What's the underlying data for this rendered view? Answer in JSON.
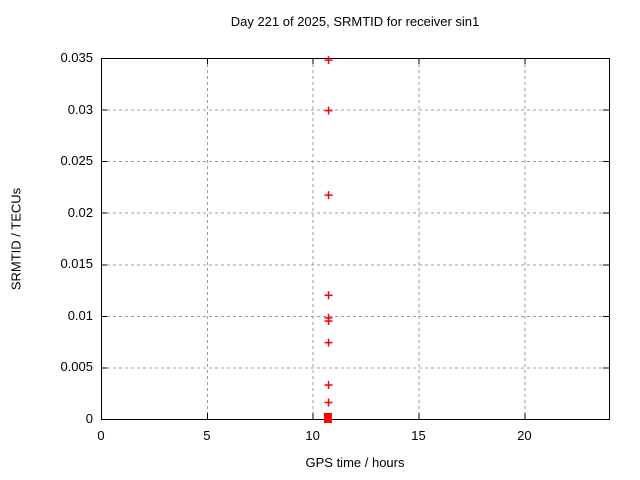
{
  "page": {
    "background": "#ffffff"
  },
  "chart_data": {
    "type": "scatter",
    "title": "Day 221 of 2025, SRMTID for receiver sin1",
    "xlabel": "GPS time / hours",
    "ylabel": "SRMTID / TECUs",
    "xlim": [
      0,
      24
    ],
    "ylim": [
      0,
      0.035
    ],
    "xticks": [
      0,
      5,
      10,
      15,
      20
    ],
    "xtick_labels": [
      "0",
      "5",
      "10",
      "15",
      "20"
    ],
    "yticks": [
      0,
      0.005,
      0.01,
      0.015,
      0.02,
      0.025,
      0.03,
      0.035
    ],
    "ytick_labels": [
      "0",
      "0.005",
      "0.01",
      "0.015",
      "0.02",
      "0.025",
      "0.03",
      "0.035"
    ],
    "grid": true,
    "legend": "none",
    "series": [
      {
        "name": "SRMTID",
        "marker": "plus",
        "color": "#ff0000",
        "points": [
          {
            "x": 10.75,
            "y": 0.0348
          },
          {
            "x": 10.75,
            "y": 0.0299
          },
          {
            "x": 10.75,
            "y": 0.0217
          },
          {
            "x": 10.75,
            "y": 0.012
          },
          {
            "x": 10.75,
            "y": 0.0098
          },
          {
            "x": 10.75,
            "y": 0.0095
          },
          {
            "x": 10.75,
            "y": 0.0074
          },
          {
            "x": 10.75,
            "y": 0.0033
          },
          {
            "x": 10.75,
            "y": 0.0016
          }
        ],
        "zero_cluster": {
          "x": 10.72,
          "y": 0.0001,
          "note": "dense overlap of many points at ~0 TECUs, appears as a filled square on the x-axis"
        }
      }
    ],
    "colors": {
      "axis": "#000000",
      "grid": "#9c9c9c",
      "text": "#000000",
      "marker": "#ff0000",
      "background": "#ffffff"
    }
  }
}
